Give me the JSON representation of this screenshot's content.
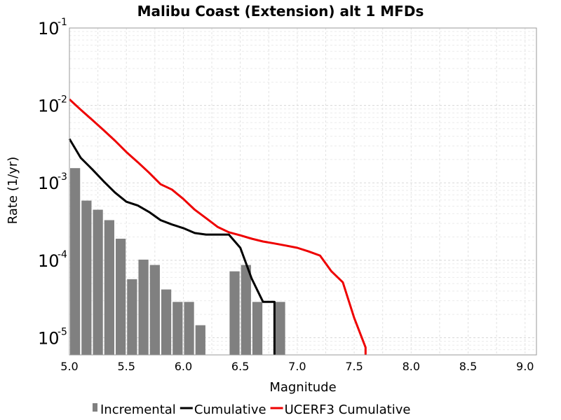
{
  "chart_data": {
    "type": "bar",
    "title": "Malibu Coast (Extension) alt 1 MFDs",
    "xlabel": "Magnitude",
    "ylabel": "Rate (1/yr)",
    "xlim": [
      5.0,
      9.1
    ],
    "ylim": [
      6e-06,
      0.1
    ],
    "yscale": "log",
    "grid": true,
    "legend_placement": "bottom",
    "x_ticks": [
      "5.0",
      "5.5",
      "6.0",
      "6.5",
      "7.0",
      "7.5",
      "8.0",
      "8.5",
      "9.0"
    ],
    "y_ticks": [
      {
        "base": "10",
        "exp": "-1",
        "value": 0.1
      },
      {
        "base": "10",
        "exp": "-2",
        "value": 0.01
      },
      {
        "base": "10",
        "exp": "-3",
        "value": 0.001
      },
      {
        "base": "10",
        "exp": "-4",
        "value": 0.0001
      },
      {
        "base": "10",
        "exp": "-5",
        "value": 1e-05
      }
    ],
    "series": [
      {
        "name": "Incremental",
        "kind": "bar",
        "color": "#808080",
        "bar_width": 0.1,
        "x": [
          5.05,
          5.15,
          5.25,
          5.35,
          5.45,
          5.55,
          5.65,
          5.75,
          5.85,
          5.95,
          6.05,
          6.15,
          6.45,
          6.55,
          6.65,
          6.85
        ],
        "y": [
          0.00155,
          0.00059,
          0.00045,
          0.00033,
          0.00019,
          5.7e-05,
          0.000102,
          8.7e-05,
          4.2e-05,
          2.9e-05,
          2.9e-05,
          1.45e-05,
          7.2e-05,
          8.7e-05,
          2.9e-05,
          2.9e-05
        ]
      },
      {
        "name": "Cumulative",
        "kind": "line",
        "color": "#000000",
        "x": [
          5.0,
          5.1,
          5.2,
          5.3,
          5.4,
          5.5,
          5.6,
          5.7,
          5.8,
          5.9,
          6.0,
          6.1,
          6.2,
          6.3,
          6.4,
          6.5,
          6.6,
          6.7,
          6.8,
          6.8
        ],
        "y": [
          0.0037,
          0.0021,
          0.0015,
          0.00105,
          0.00075,
          0.00057,
          0.00051,
          0.00042,
          0.00033,
          0.00029,
          0.00026,
          0.000225,
          0.000215,
          0.000215,
          0.000215,
          0.000145,
          5.8e-05,
          2.9e-05,
          2.9e-05,
          6e-06
        ]
      },
      {
        "name": "UCERF3 Cumulative",
        "kind": "line",
        "color": "#ee0000",
        "x": [
          5.0,
          5.1,
          5.2,
          5.3,
          5.4,
          5.5,
          5.6,
          5.7,
          5.8,
          5.9,
          6.0,
          6.1,
          6.2,
          6.3,
          6.4,
          6.5,
          6.6,
          6.7,
          6.8,
          6.9,
          7.0,
          7.1,
          7.2,
          7.3,
          7.4,
          7.5,
          7.6,
          7.6
        ],
        "y": [
          0.012,
          0.0088,
          0.0065,
          0.0048,
          0.0035,
          0.0025,
          0.00185,
          0.00135,
          0.00096,
          0.00082,
          0.00062,
          0.00045,
          0.00035,
          0.00027,
          0.00023,
          0.00021,
          0.00019,
          0.000175,
          0.000165,
          0.000155,
          0.000145,
          0.00013,
          0.000115,
          7.2e-05,
          5.2e-05,
          1.8e-05,
          7.5e-06,
          6e-06
        ]
      }
    ]
  }
}
